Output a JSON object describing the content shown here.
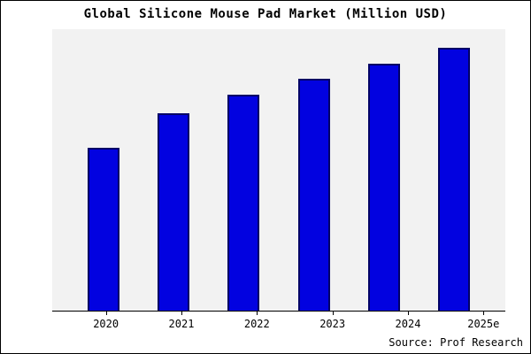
{
  "chart_data": {
    "type": "bar",
    "title": "Global Silicone Mouse Pad Market (Million USD)",
    "categories": [
      "2020",
      "2021",
      "2022",
      "2023",
      "2024",
      "2025e"
    ],
    "values": [
      62,
      75,
      82,
      88,
      94,
      100
    ],
    "xlabel": "",
    "ylabel": "",
    "ylim": [
      0,
      107
    ],
    "grid": false,
    "legend": false,
    "value_note": "no y-axis labels shown; values are relative estimates with 2025e = 100",
    "colors": {
      "bar_fill": "#0202e0",
      "bar_border": "#000066",
      "plot_background": "#f2f2f2",
      "frame_border": "#000000"
    }
  },
  "source": "Source: Prof Research"
}
